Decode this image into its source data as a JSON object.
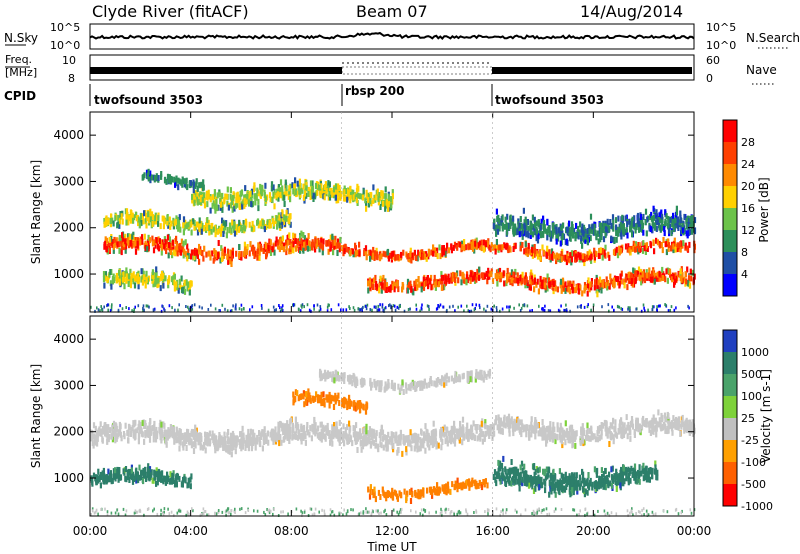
{
  "header": {
    "station": "Clyde River (fitACF)",
    "beam": "Beam 07",
    "date": "14/Aug/2014"
  },
  "noise_panel": {
    "left_label": "N.Sky",
    "left_ticks": [
      "10^5",
      "10^0"
    ],
    "right_label": "N.Search",
    "right_ticks": [
      "10^5",
      "10^0"
    ]
  },
  "freq_panel": {
    "left_label_1": "Freq.",
    "left_label_2": "[MHz]",
    "left_ticks": [
      "10",
      "8"
    ],
    "right_label": "Nave",
    "right_ticks": [
      "60",
      "0"
    ]
  },
  "cpid": {
    "label": "CPID",
    "segments": [
      {
        "name": "twofsound 3503",
        "start_hour": 0
      },
      {
        "name": "rbsp 200",
        "start_hour": 10
      },
      {
        "name": "twofsound 3503",
        "start_hour": 16
      }
    ]
  },
  "time_axis": {
    "label": "Time UT",
    "tick_labels": [
      "00:00",
      "04:00",
      "08:00",
      "12:00",
      "16:00",
      "20:00",
      "00:00"
    ]
  },
  "chart_data": [
    {
      "type": "heatmap",
      "title": "",
      "xlabel": "",
      "ylabel": "Slant Range [km]",
      "xlim": [
        0,
        24
      ],
      "ylim": [
        180,
        4500
      ],
      "yticks": [
        1000,
        2000,
        3000,
        4000
      ],
      "colorbar": {
        "label": "Power [dB]",
        "tick_labels": [
          "28",
          "24",
          "20",
          "16",
          "12",
          "8",
          "4"
        ],
        "colors": [
          "#ff0000",
          "#ff4000",
          "#ff8a00",
          "#ffd000",
          "#6cc34a",
          "#2c8f5a",
          "#1f4fa5",
          "#0000ff"
        ]
      },
      "bands": [
        {
          "t0": 0.5,
          "t1": 10.0,
          "r_center": 1550,
          "r_half": 260,
          "level": "high"
        },
        {
          "t0": 10.0,
          "t1": 24.0,
          "r_center": 1500,
          "r_half": 170,
          "level": "high"
        },
        {
          "t0": 0.5,
          "t1": 8.0,
          "r_center": 2100,
          "r_half": 220,
          "level": "mid"
        },
        {
          "t0": 4.0,
          "t1": 12.0,
          "r_center": 2700,
          "r_half": 300,
          "level": "mid"
        },
        {
          "t0": 0.5,
          "t1": 4.0,
          "r_center": 800,
          "r_half": 260,
          "level": "mid"
        },
        {
          "t0": 11.0,
          "t1": 24.0,
          "r_center": 850,
          "r_half": 220,
          "level": "high"
        },
        {
          "t0": 16.0,
          "t1": 24.0,
          "r_center": 2000,
          "r_half": 350,
          "level": "low"
        },
        {
          "t0": 2.0,
          "t1": 4.5,
          "r_center": 3000,
          "r_half": 150,
          "level": "low"
        }
      ]
    },
    {
      "type": "heatmap",
      "title": "",
      "xlabel": "Time UT",
      "ylabel": "Slant Range [km]",
      "xlim": [
        0,
        24
      ],
      "ylim": [
        180,
        4500
      ],
      "yticks": [
        1000,
        2000,
        3000,
        4000
      ],
      "colorbar": {
        "label": "Velocity [m s-1]",
        "tick_labels": [
          "1000",
          "500",
          "100",
          "25",
          "-25",
          "-100",
          "-500",
          "-1000"
        ],
        "colors": [
          "#2040c0",
          "#2c7f6a",
          "#4aa36a",
          "#7ed23a",
          "#c0c0c0",
          "#ffa000",
          "#ff6000",
          "#ff0000"
        ]
      },
      "bands": [
        {
          "t0": 0.0,
          "t1": 16.0,
          "r_center": 1900,
          "r_half": 330,
          "level": "grey"
        },
        {
          "t0": 16.0,
          "t1": 24.0,
          "r_center": 2050,
          "r_half": 300,
          "level": "grey"
        },
        {
          "t0": 0.0,
          "t1": 4.0,
          "r_center": 950,
          "r_half": 240,
          "level": "green"
        },
        {
          "t0": 16.0,
          "t1": 22.5,
          "r_center": 1000,
          "r_half": 350,
          "level": "green"
        },
        {
          "t0": 11.0,
          "t1": 15.8,
          "r_center": 750,
          "r_half": 150,
          "level": "orange"
        },
        {
          "t0": 8.0,
          "t1": 11.0,
          "r_center": 2600,
          "r_half": 200,
          "level": "orange"
        },
        {
          "t0": 9.0,
          "t1": 16.0,
          "r_center": 3100,
          "r_half": 150,
          "level": "grey"
        }
      ]
    }
  ]
}
